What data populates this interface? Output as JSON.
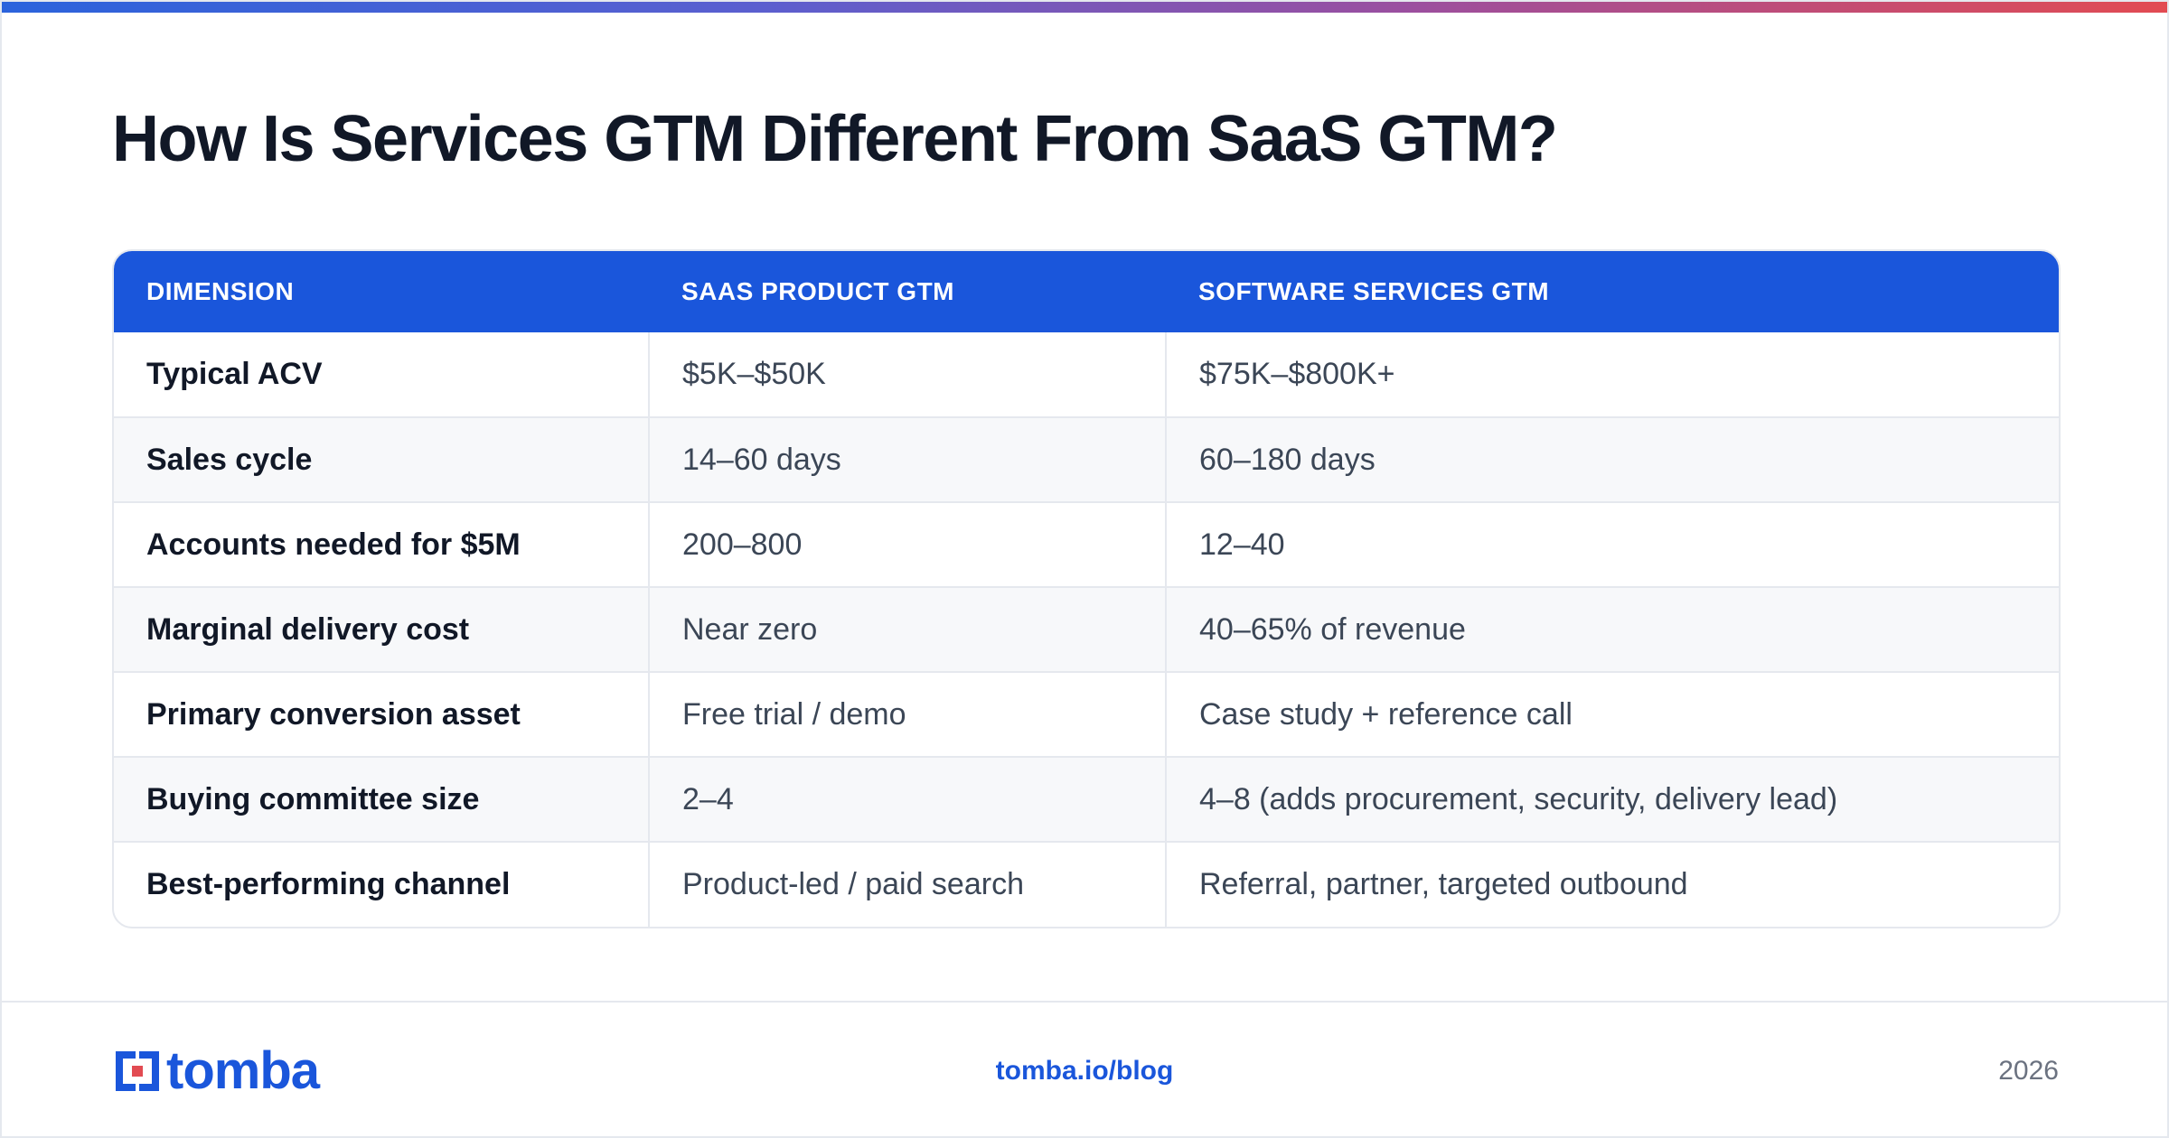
{
  "title": "How Is Services GTM Different From SaaS GTM?",
  "table": {
    "headers": [
      "DIMENSION",
      "SAAS PRODUCT GTM",
      "SOFTWARE SERVICES GTM"
    ],
    "rows": [
      [
        "Typical ACV",
        "$5K–$50K",
        "$75K–$800K+"
      ],
      [
        "Sales cycle",
        "14–60 days",
        "60–180 days"
      ],
      [
        "Accounts needed for $5M",
        "200–800",
        "12–40"
      ],
      [
        "Marginal delivery cost",
        "Near zero",
        "40–65% of revenue"
      ],
      [
        "Primary conversion asset",
        "Free trial / demo",
        "Case study + reference call"
      ],
      [
        "Buying committee size",
        "2–4",
        "4–8 (adds procurement, security, delivery lead)"
      ],
      [
        "Best-performing channel",
        "Product-led / paid search",
        "Referral, partner, targeted outbound"
      ]
    ]
  },
  "footer": {
    "logo_text": "tomba",
    "link": "tomba.io/blog",
    "year": "2026"
  },
  "colors": {
    "accent": "#1a56db",
    "brand_red": "#e24b52",
    "title": "#111827"
  },
  "icons": {
    "logo_mark": "tomba-logo-icon"
  }
}
